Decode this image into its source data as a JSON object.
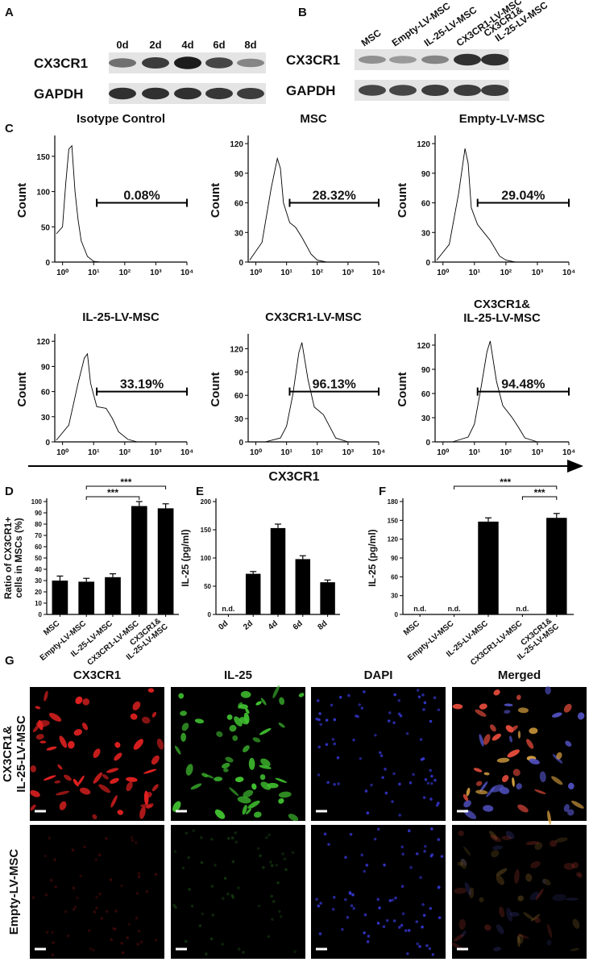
{
  "panel_labels": {
    "a": "A",
    "b": "B",
    "c": "C",
    "d": "D",
    "e": "E",
    "f": "F",
    "g": "G"
  },
  "blot_a": {
    "lanes": [
      "0d",
      "2d",
      "4d",
      "6d",
      "8d"
    ],
    "rows": [
      {
        "name": "CX3CR1",
        "intensity": [
          0.55,
          0.8,
          0.95,
          0.75,
          0.45
        ]
      },
      {
        "name": "GAPDH",
        "intensity": [
          0.85,
          0.85,
          0.85,
          0.82,
          0.8
        ]
      }
    ]
  },
  "blot_b": {
    "lanes": [
      [
        "MSC"
      ],
      [
        "Empty-LV-MSC"
      ],
      [
        "IL-25-LV-MSC"
      ],
      [
        "CX3CR1-LV-MSC"
      ],
      [
        "CX3CR1&",
        "IL-25-LV-MSC"
      ]
    ],
    "rows": [
      {
        "name": "CX3CR1",
        "intensity": [
          0.4,
          0.35,
          0.45,
          0.85,
          0.85
        ]
      },
      {
        "name": "GAPDH",
        "intensity": [
          0.75,
          0.75,
          0.8,
          0.8,
          0.8
        ]
      }
    ]
  },
  "flow": {
    "x_axis_label": "CX3CR1",
    "y_axis_label": "Count",
    "xlim": [
      -0.25,
      4
    ],
    "xticks": [
      {
        "value": 0,
        "label": "10⁰"
      },
      {
        "value": 1,
        "label": "10¹"
      },
      {
        "value": 2,
        "label": "10²"
      },
      {
        "value": 3,
        "label": "10³"
      },
      {
        "value": 4,
        "label": "10⁴"
      }
    ],
    "panels": [
      {
        "title": "Isotype Control",
        "gate_label": "0.08%",
        "ylim": [
          0,
          175
        ],
        "yticks": [
          0,
          50,
          100,
          150
        ],
        "x": [
          -0.2,
          0.0,
          0.1,
          0.2,
          0.3,
          0.4,
          0.5,
          0.6,
          0.8,
          1.0,
          1.2
        ],
        "values": [
          40,
          50,
          110,
          160,
          165,
          100,
          60,
          30,
          8,
          1,
          0
        ]
      },
      {
        "title": "MSC",
        "gate_label": "28.32%",
        "ylim": [
          0,
          125
        ],
        "yticks": [
          0,
          30,
          60,
          90,
          120
        ],
        "x": [
          -0.2,
          0.2,
          0.5,
          0.7,
          0.8,
          0.9,
          1.1,
          1.3,
          1.5,
          1.8,
          2.0,
          2.3
        ],
        "values": [
          2,
          20,
          75,
          105,
          95,
          60,
          40,
          35,
          25,
          8,
          2,
          0
        ]
      },
      {
        "title": "Empty-LV-MSC",
        "gate_label": "29.04%",
        "ylim": [
          0,
          125
        ],
        "yticks": [
          0,
          30,
          60,
          90,
          120
        ],
        "x": [
          -0.2,
          0.2,
          0.5,
          0.7,
          0.8,
          0.9,
          1.1,
          1.3,
          1.5,
          1.8,
          2.0,
          2.3
        ],
        "values": [
          2,
          18,
          70,
          115,
          100,
          55,
          38,
          30,
          22,
          6,
          2,
          0
        ]
      },
      {
        "title": "IL-25-LV-MSC",
        "gate_label": "33.19%",
        "ylim": [
          0,
          125
        ],
        "yticks": [
          0,
          30,
          60,
          90,
          120
        ],
        "x": [
          -0.2,
          0.2,
          0.5,
          0.7,
          0.8,
          0.9,
          1.1,
          1.4,
          1.6,
          1.8,
          2.1,
          2.4
        ],
        "values": [
          2,
          20,
          70,
          100,
          105,
          70,
          42,
          40,
          28,
          12,
          3,
          0
        ]
      },
      {
        "title": "CX3CR1-LV-MSC",
        "gate_label": "96.13%",
        "ylim": [
          0,
          135
        ],
        "yticks": [
          0,
          30,
          60,
          90,
          120
        ],
        "x": [
          0.3,
          0.8,
          1.0,
          1.2,
          1.4,
          1.5,
          1.7,
          1.9,
          2.2,
          2.4,
          2.6,
          3.0
        ],
        "values": [
          0,
          5,
          20,
          60,
          115,
          128,
          80,
          45,
          35,
          20,
          5,
          0
        ]
      },
      {
        "title": [
          "CX3CR1&",
          "IL-25-LV-MSC"
        ],
        "gate_label": "94.48%",
        "ylim": [
          0,
          130
        ],
        "yticks": [
          0,
          30,
          60,
          90,
          120
        ],
        "x": [
          0.3,
          0.8,
          1.0,
          1.2,
          1.4,
          1.5,
          1.7,
          1.9,
          2.2,
          2.4,
          2.6,
          3.0
        ],
        "values": [
          0,
          6,
          22,
          65,
          112,
          125,
          75,
          45,
          30,
          18,
          5,
          0
        ]
      }
    ]
  },
  "chart_data": [
    {
      "type": "bar",
      "y_label": [
        "Ratio of CX3CR1+",
        "cells in MSCs (%)"
      ],
      "categories": [
        "MSC",
        "Empty-LV-MSC",
        "IL-25-LV-MSC",
        "CX3CR1-LV-MSC",
        [
          "CX3CR1&",
          "IL-25-LV-MSC"
        ]
      ],
      "values": [
        30,
        29,
        33,
        96,
        94
      ],
      "errors": [
        4,
        3,
        3,
        4,
        4
      ],
      "color": "#000000",
      "ylim": [
        0,
        100
      ],
      "yticks": [
        0,
        10,
        20,
        30,
        40,
        50,
        60,
        70,
        80,
        90,
        100
      ],
      "significance": [
        {
          "pair": [
            1,
            3
          ],
          "label": "***"
        },
        {
          "pair": [
            1,
            4
          ],
          "label": "***"
        }
      ]
    },
    {
      "type": "bar",
      "y_label": [
        "IL-25 (pg/ml)"
      ],
      "categories": [
        "0d",
        "2d",
        "4d",
        "6d",
        "8d"
      ],
      "values": [
        null,
        72,
        153,
        98,
        57
      ],
      "errors": [
        null,
        4,
        7,
        6,
        4
      ],
      "value_labels": [
        "n.d.",
        null,
        null,
        null,
        null
      ],
      "color": "#000000",
      "ylim": [
        0,
        200
      ],
      "yticks": [
        0,
        50,
        100,
        150,
        200
      ],
      "significance": []
    },
    {
      "type": "bar",
      "y_label": [
        "IL-25 (pg/ml)"
      ],
      "categories": [
        "MSC",
        "Empty-LV-MSC",
        "IL-25-LV-MSC",
        "CX3CR1-LV-MSC",
        [
          "CX3CR1&",
          "IL-25-LV-MSC"
        ]
      ],
      "values": [
        null,
        null,
        148,
        null,
        154
      ],
      "errors": [
        null,
        null,
        6,
        null,
        7
      ],
      "value_labels": [
        "n.d.",
        "n.d.",
        null,
        "n.d.",
        null
      ],
      "color": "#000000",
      "ylim": [
        0,
        180
      ],
      "yticks": [
        0,
        30,
        60,
        90,
        120,
        150,
        180
      ],
      "significance": [
        {
          "pair": [
            3,
            4
          ],
          "label": "***"
        },
        {
          "pair": [
            1,
            4
          ],
          "label": "***"
        }
      ]
    }
  ],
  "microscopy": {
    "columns": [
      {
        "text": "CX3CR1",
        "color": "#d42a2a"
      },
      {
        "text": "IL-25",
        "color": "#3fae2a"
      },
      {
        "text": "DAPI",
        "color": "#2a2aa8"
      },
      {
        "text": "Merged",
        "color": "#111111"
      }
    ],
    "rows": [
      [
        "CX3CR1&",
        "IL-25-LV-MSC"
      ],
      [
        "Empty-LV-MSC"
      ]
    ]
  }
}
